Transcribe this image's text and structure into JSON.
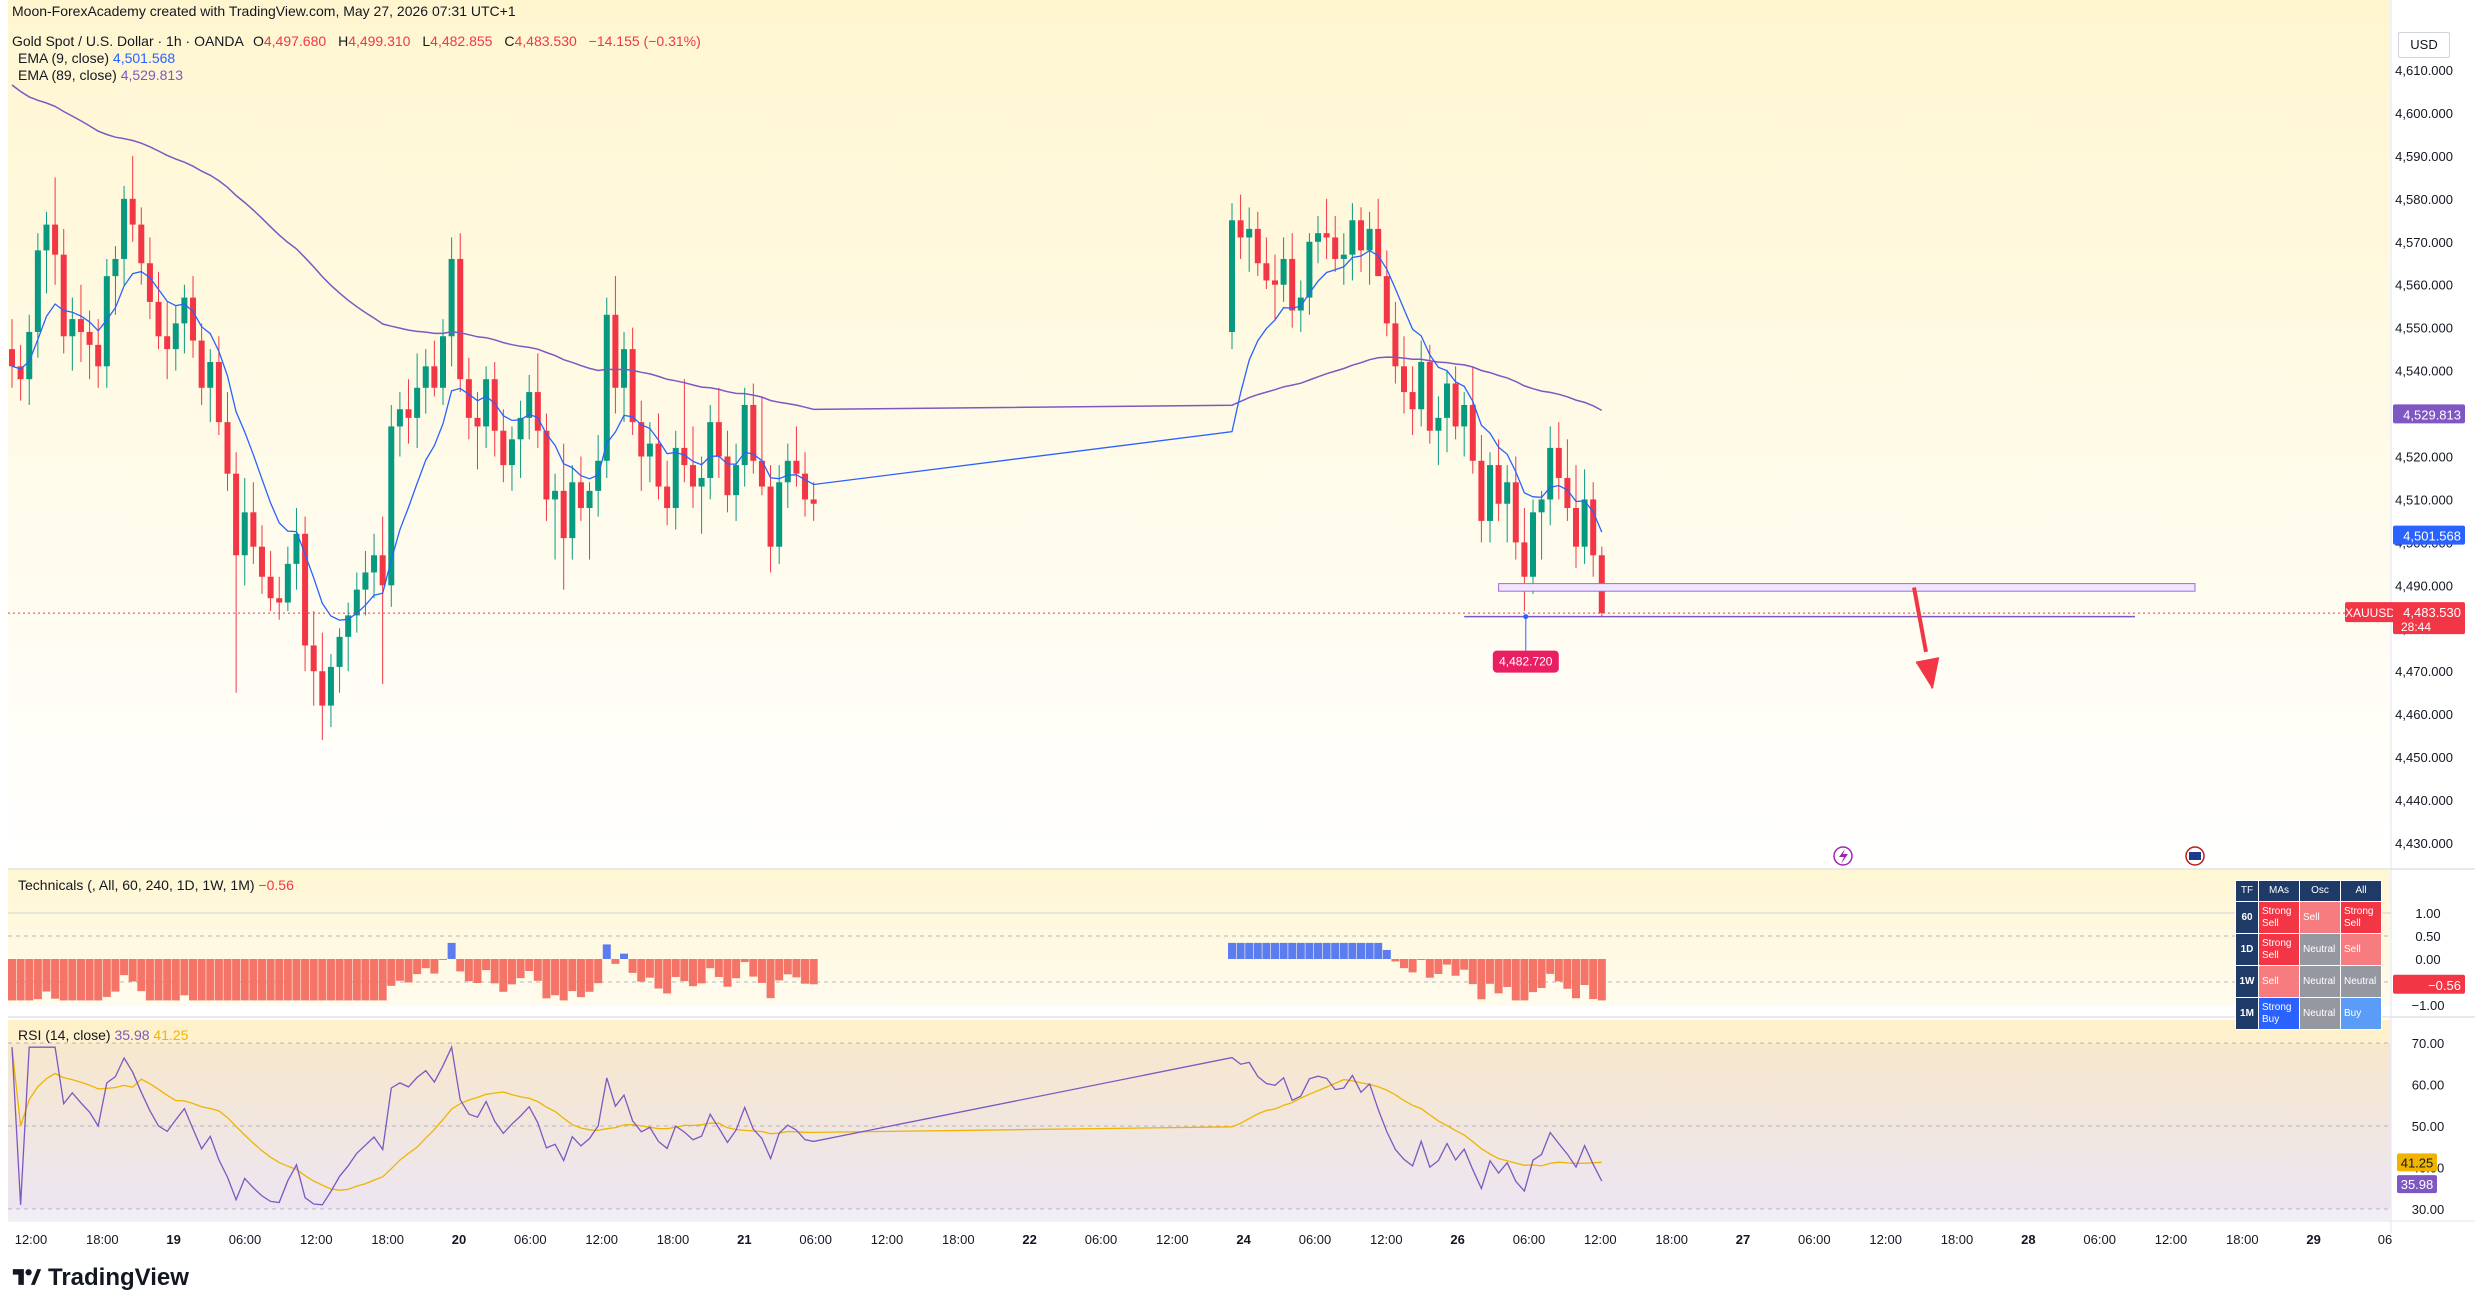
{
  "header": {
    "attribution": "Moon-ForexAcademy created with TradingView.com, May 27, 2026 07:31 UTC+1"
  },
  "symbol": {
    "name": "Gold Spot / U.S. Dollar · 1h · OANDA",
    "ohlc": {
      "o_label": "O",
      "o": "4,497.680",
      "h_label": "H",
      "h": "4,499.310",
      "l_label": "L",
      "l": "4,482.855",
      "c_label": "C",
      "c": "4,483.530",
      "change": "−14.155 (−0.31%)"
    }
  },
  "indicators": {
    "ema9": {
      "label": "EMA (9, close)",
      "value": "4,501.568",
      "color": "#2962ff"
    },
    "ema89": {
      "label": "EMA (89, close)",
      "value": "4,529.813",
      "color": "#7e57c2"
    },
    "technicals": {
      "label": "Technicals (, All, 60, 240, 1D, 1W, 1M)",
      "value": "−0.56"
    },
    "rsi": {
      "label": "RSI (14, close)",
      "value": "35.98",
      "ma_value": "41.25"
    }
  },
  "price_axis": {
    "currency": "USD",
    "ticks": [
      "4,610.000",
      "4,600.000",
      "4,590.000",
      "4,580.000",
      "4,570.000",
      "4,560.000",
      "4,550.000",
      "4,540.000",
      "4,530.000",
      "4,520.000",
      "4,510.000",
      "4,500.000",
      "4,490.000",
      "4,480.000",
      "4,470.000",
      "4,460.000",
      "4,450.000",
      "4,440.000",
      "4,430.000"
    ],
    "badges": {
      "ema89": "4,529.813",
      "ema9": "4,501.568",
      "symbol": "XAUUSD",
      "last": "4,483.530",
      "countdown": "28:44"
    }
  },
  "tech_axis": {
    "ticks": [
      "1.00",
      "0.50",
      "0.00",
      "−0.50",
      "−1.00"
    ],
    "badge": "−0.56"
  },
  "rsi_axis": {
    "ticks": [
      "70.00",
      "60.00",
      "50.00",
      "40.00",
      "30.00"
    ],
    "badge_ma": "41.25",
    "badge_rsi": "35.98"
  },
  "time_axis": {
    "labels": [
      "12:00",
      "18:00",
      "19",
      "06:00",
      "12:00",
      "18:00",
      "20",
      "06:00",
      "12:00",
      "18:00",
      "21",
      "06:00",
      "12:00",
      "18:00",
      "22",
      "06:00",
      "12:00",
      "24",
      "06:00",
      "12:00",
      "26",
      "06:00",
      "12:00",
      "18:00",
      "27",
      "06:00",
      "12:00",
      "18:00",
      "28",
      "06:00",
      "12:00",
      "18:00",
      "29",
      "06"
    ],
    "bold": [
      "19",
      "20",
      "21",
      "22",
      "24",
      "26",
      "27",
      "28",
      "29"
    ]
  },
  "annotations": {
    "low_marker": "4,482.720"
  },
  "tech_table": {
    "headers": [
      "TF",
      "MAs",
      "Osc",
      "All"
    ],
    "rows": [
      {
        "tf": "60",
        "mas": "Strong Sell",
        "osc": "Sell",
        "all": "Strong Sell"
      },
      {
        "tf": "1D",
        "mas": "Strong Sell",
        "osc": "Neutral",
        "all": "Sell"
      },
      {
        "tf": "1W",
        "mas": "Sell",
        "osc": "Neutral",
        "all": "Neutral"
      },
      {
        "tf": "1M",
        "mas": "Strong Buy",
        "osc": "Neutral",
        "all": "Buy"
      }
    ]
  },
  "colors": {
    "up": "#089981",
    "down": "#f23645",
    "ema9": "#2962ff",
    "ema89": "#7e57c2",
    "rsi": "#7e57c2",
    "rsi_ma": "#f0b400",
    "tech_pos": "#5b7df0",
    "tech_neg": "#f47467"
  },
  "brand": "TradingView",
  "chart_data": {
    "type": "candlestick",
    "timeframe": "1h",
    "x_range": [
      "May 18 12:00",
      "May 27 07:00"
    ],
    "ylim": [
      4430,
      4610
    ],
    "candles_ohlc": [
      [
        4545,
        4552,
        4536,
        4541
      ],
      [
        4541,
        4546,
        4533,
        4538
      ],
      [
        4538,
        4553,
        4532,
        4549
      ],
      [
        4549,
        4572,
        4543,
        4568
      ],
      [
        4568,
        4577,
        4558,
        4574
      ],
      [
        4574,
        4585,
        4560,
        4567
      ],
      [
        4567,
        4573,
        4544,
        4548
      ],
      [
        4548,
        4557,
        4540,
        4552
      ],
      [
        4552,
        4560,
        4542,
        4549
      ],
      [
        4549,
        4554,
        4538,
        4546
      ],
      [
        4546,
        4552,
        4536,
        4541
      ],
      [
        4541,
        4566,
        4536,
        4562
      ],
      [
        4562,
        4569,
        4553,
        4566
      ],
      [
        4566,
        4583,
        4560,
        4580
      ],
      [
        4580,
        4590,
        4570,
        4574
      ],
      [
        4574,
        4578,
        4560,
        4565
      ],
      [
        4565,
        4571,
        4552,
        4556
      ],
      [
        4556,
        4563,
        4545,
        4548
      ],
      [
        4548,
        4556,
        4538,
        4545
      ],
      [
        4545,
        4555,
        4540,
        4551
      ],
      [
        4551,
        4560,
        4544,
        4557
      ],
      [
        4557,
        4562,
        4543,
        4547
      ],
      [
        4547,
        4551,
        4532,
        4536
      ],
      [
        4536,
        4545,
        4528,
        4542
      ],
      [
        4542,
        4548,
        4525,
        4528
      ],
      [
        4528,
        4535,
        4512,
        4516
      ],
      [
        4516,
        4521,
        4465,
        4497
      ],
      [
        4497,
        4515,
        4490,
        4507
      ],
      [
        4507,
        4514,
        4495,
        4499
      ],
      [
        4499,
        4504,
        4488,
        4492
      ],
      [
        4492,
        4498,
        4484,
        4487
      ],
      [
        4487,
        4492,
        4482,
        4486
      ],
      [
        4486,
        4499,
        4484,
        4495
      ],
      [
        4495,
        4508,
        4489,
        4502
      ],
      [
        4502,
        4506,
        4470,
        4476
      ],
      [
        4476,
        4484,
        4462,
        4470
      ],
      [
        4470,
        4479,
        4454,
        4462
      ],
      [
        4462,
        4474,
        4457,
        4471
      ],
      [
        4471,
        4480,
        4465,
        4478
      ],
      [
        4478,
        4486,
        4470,
        4483
      ],
      [
        4483,
        4493,
        4479,
        4489
      ],
      [
        4489,
        4498,
        4483,
        4493
      ],
      [
        4493,
        4502,
        4487,
        4497
      ],
      [
        4497,
        4506,
        4467,
        4490
      ],
      [
        4490,
        4532,
        4485,
        4527
      ],
      [
        4527,
        4535,
        4520,
        4531
      ],
      [
        4531,
        4538,
        4523,
        4529
      ],
      [
        4529,
        4544,
        4522,
        4536
      ],
      [
        4536,
        4545,
        4530,
        4541
      ],
      [
        4541,
        4547,
        4534,
        4536
      ],
      [
        4536,
        4552,
        4532,
        4548
      ],
      [
        4548,
        4571,
        4541,
        4566
      ],
      [
        4566,
        4572,
        4535,
        4538
      ],
      [
        4538,
        4543,
        4524,
        4529
      ],
      [
        4529,
        4535,
        4517,
        4527
      ],
      [
        4527,
        4541,
        4522,
        4538
      ],
      [
        4538,
        4542,
        4520,
        4526
      ],
      [
        4526,
        4531,
        4514,
        4518
      ],
      [
        4518,
        4527,
        4512,
        4524
      ],
      [
        4524,
        4533,
        4515,
        4529
      ],
      [
        4529,
        4539,
        4524,
        4535
      ],
      [
        4535,
        4544,
        4522,
        4526
      ],
      [
        4526,
        4530,
        4505,
        4510
      ],
      [
        4510,
        4516,
        4496,
        4512
      ],
      [
        4512,
        4523,
        4489,
        4501
      ],
      [
        4501,
        4518,
        4496,
        4514
      ],
      [
        4514,
        4520,
        4505,
        4508
      ],
      [
        4508,
        4514,
        4496,
        4512
      ],
      [
        4512,
        4525,
        4506,
        4519
      ],
      [
        4519,
        4557,
        4515,
        4553
      ],
      [
        4553,
        4562,
        4530,
        4536
      ],
      [
        4536,
        4549,
        4528,
        4545
      ],
      [
        4545,
        4550,
        4525,
        4528
      ],
      [
        4528,
        4533,
        4512,
        4520
      ],
      [
        4520,
        4528,
        4514,
        4523
      ],
      [
        4523,
        4530,
        4510,
        4513
      ],
      [
        4513,
        4519,
        4504,
        4508
      ],
      [
        4508,
        4526,
        4503,
        4522
      ],
      [
        4522,
        4538,
        4514,
        4518
      ],
      [
        4518,
        4527,
        4508,
        4513
      ],
      [
        4513,
        4520,
        4502,
        4515
      ],
      [
        4515,
        4532,
        4510,
        4528
      ],
      [
        4528,
        4536,
        4515,
        4520
      ],
      [
        4520,
        4526,
        4507,
        4511
      ],
      [
        4511,
        4523,
        4505,
        4518
      ],
      [
        4518,
        4536,
        4513,
        4532
      ],
      [
        4532,
        4537,
        4516,
        4519
      ],
      [
        4519,
        4534,
        4511,
        4513
      ],
      [
        4513,
        4518,
        4493,
        4499
      ],
      [
        4499,
        4518,
        4495,
        4514
      ],
      [
        4514,
        4523,
        4508,
        4519
      ],
      [
        4519,
        4527,
        4513,
        4516
      ],
      [
        4516,
        4521,
        4506,
        4510
      ],
      [
        4510,
        4514,
        4505,
        4509
      ],
      [
        4549,
        4579,
        4545,
        4575
      ],
      [
        4575,
        4581,
        4566,
        4571
      ],
      [
        4571,
        4578,
        4563,
        4573
      ],
      [
        4573,
        4577,
        4562,
        4565
      ],
      [
        4565,
        4571,
        4559,
        4561
      ],
      [
        4561,
        4567,
        4552,
        4560
      ],
      [
        4560,
        4571,
        4556,
        4566
      ],
      [
        4566,
        4572,
        4550,
        4554
      ],
      [
        4554,
        4561,
        4549,
        4557
      ],
      [
        4557,
        4572,
        4553,
        4570
      ],
      [
        4570,
        4576,
        4565,
        4572
      ],
      [
        4572,
        4580,
        4566,
        4571
      ],
      [
        4571,
        4576,
        4563,
        4566
      ],
      [
        4566,
        4572,
        4560,
        4567
      ],
      [
        4567,
        4579,
        4561,
        4575
      ],
      [
        4575,
        4578,
        4563,
        4568
      ],
      [
        4568,
        4577,
        4560,
        4573
      ],
      [
        4573,
        4580,
        4564,
        4562
      ],
      [
        4562,
        4568,
        4548,
        4551
      ],
      [
        4551,
        4556,
        4537,
        4541
      ],
      [
        4541,
        4548,
        4530,
        4535
      ],
      [
        4535,
        4541,
        4525,
        4531
      ],
      [
        4531,
        4547,
        4527,
        4542
      ],
      [
        4542,
        4546,
        4523,
        4526
      ],
      [
        4526,
        4534,
        4518,
        4529
      ],
      [
        4529,
        4540,
        4521,
        4537
      ],
      [
        4537,
        4541,
        4524,
        4527
      ],
      [
        4527,
        4535,
        4520,
        4532
      ],
      [
        4532,
        4541,
        4516,
        4519
      ],
      [
        4519,
        4525,
        4500,
        4505
      ],
      [
        4505,
        4521,
        4500,
        4518
      ],
      [
        4518,
        4524,
        4505,
        4509
      ],
      [
        4509,
        4518,
        4500,
        4514
      ],
      [
        4514,
        4520,
        4496,
        4500
      ],
      [
        4500,
        4508,
        4484,
        4492
      ],
      [
        4492,
        4510,
        4488,
        4507
      ],
      [
        4507,
        4512,
        4496,
        4510
      ],
      [
        4510,
        4527,
        4504,
        4522
      ],
      [
        4522,
        4528,
        4510,
        4515
      ],
      [
        4515,
        4524,
        4505,
        4508
      ],
      [
        4508,
        4518,
        4494,
        4499
      ],
      [
        4499,
        4517,
        4495,
        4510
      ],
      [
        4510,
        4514,
        4492,
        4497
      ],
      [
        4497,
        4499,
        4482.855,
        4483.53
      ]
    ],
    "series": [
      {
        "name": "EMA (9, close)",
        "last": 4501.568
      },
      {
        "name": "EMA (89, close)",
        "last": 4529.813
      }
    ],
    "sub_panels": [
      {
        "name": "Technicals",
        "ylim": [
          -1,
          1
        ],
        "last": -0.56
      },
      {
        "name": "RSI (14, close)",
        "ylim": [
          30,
          70
        ],
        "last": 35.98,
        "ma_last": 41.25
      }
    ]
  }
}
